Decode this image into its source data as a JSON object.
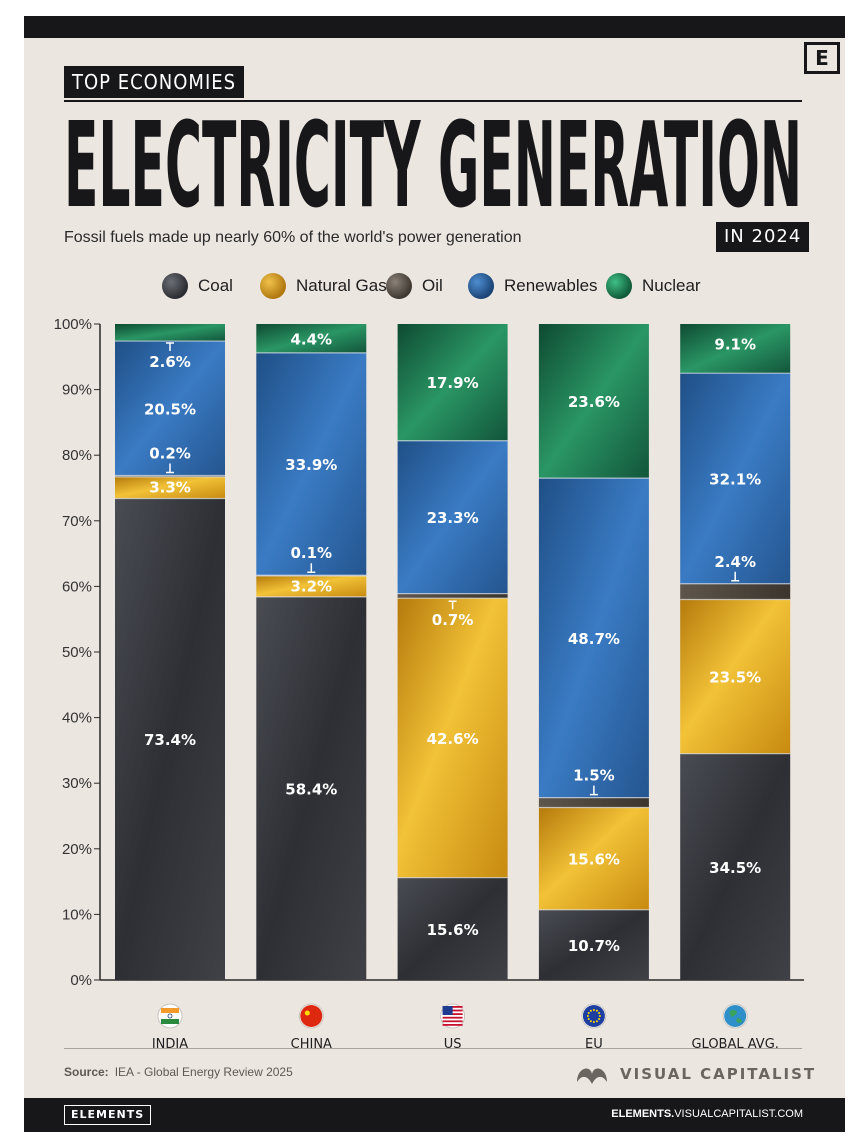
{
  "header": {
    "logo_letter": "E",
    "kicker": "TOP ECONOMIES",
    "title": "ELECTRICITY GENERATION",
    "subtitle": "Fossil fuels made up nearly 60% of the world's power generation",
    "year_tag": "IN 2024"
  },
  "colors": {
    "coal": "#3a3c42",
    "natural_gas": "#d6a01c",
    "oil": "#5a524a",
    "renewables": "#2f6aa8",
    "nuclear": "#1f7a4e"
  },
  "legend": [
    {
      "key": "coal",
      "label": "Coal"
    },
    {
      "key": "natural_gas",
      "label": "Natural Gas"
    },
    {
      "key": "oil",
      "label": "Oil"
    },
    {
      "key": "renewables",
      "label": "Renewables"
    },
    {
      "key": "nuclear",
      "label": "Nuclear"
    }
  ],
  "chart_data": {
    "type": "bar",
    "stacked": true,
    "title": "ELECTRICITY GENERATION",
    "ylabel": "",
    "xlabel": "",
    "ylim": [
      0,
      100
    ],
    "yticks": [
      "0%",
      "10%",
      "20%",
      "30%",
      "40%",
      "50%",
      "60%",
      "70%",
      "80%",
      "90%",
      "100%"
    ],
    "categories": [
      "INDIA",
      "CHINA",
      "US",
      "EU",
      "GLOBAL AVG."
    ],
    "category_icons": [
      "india-flag-icon",
      "china-flag-icon",
      "us-flag-icon",
      "eu-flag-icon",
      "globe-icon"
    ],
    "series": [
      {
        "key": "coal",
        "name": "Coal",
        "values": [
          73.4,
          58.4,
          15.6,
          10.7,
          34.5
        ],
        "labels": [
          "73.4%",
          "58.4%",
          "15.6%",
          "10.7%",
          "34.5%"
        ]
      },
      {
        "key": "natural_gas",
        "name": "Natural Gas",
        "values": [
          3.3,
          3.2,
          42.6,
          15.6,
          23.5
        ],
        "labels": [
          "3.3%",
          "3.2%",
          "42.6%",
          "15.6%",
          "23.5%"
        ]
      },
      {
        "key": "oil",
        "name": "Oil",
        "values": [
          0.2,
          0.1,
          0.7,
          1.5,
          2.4
        ],
        "labels": [
          "0.2%",
          "0.1%",
          "0.7%",
          "1.5%",
          "2.4%"
        ]
      },
      {
        "key": "renewables",
        "name": "Renewables",
        "values": [
          20.5,
          33.9,
          23.3,
          48.7,
          32.1
        ],
        "labels": [
          "20.5%",
          "33.9%",
          "23.3%",
          "48.7%",
          "32.1%"
        ]
      },
      {
        "key": "nuclear",
        "name": "Nuclear",
        "values": [
          2.6,
          4.4,
          17.9,
          23.6,
          9.1
        ],
        "labels": [
          "2.6%",
          "4.4%",
          "17.9%",
          "23.6%",
          "9.1%"
        ]
      }
    ]
  },
  "footer": {
    "source_label": "Source:",
    "source_text": "IEA - Global Energy Review 2025",
    "brand": "VISUAL CAPITALIST",
    "elements_logo": "ELEMENTS",
    "url_bold": "ELEMENTS.",
    "url_rest": "VISUALCAPITALIST.COM"
  }
}
